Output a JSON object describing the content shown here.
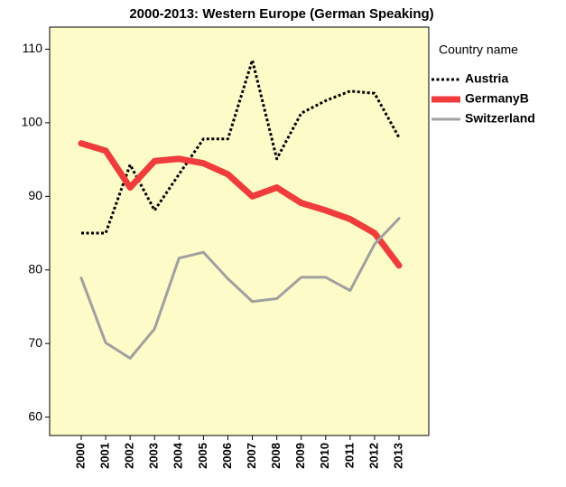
{
  "chart_data": {
    "type": "line",
    "title": "2000-2013: Western Europe (German Speaking)",
    "categories": [
      "2000",
      "2001",
      "2002",
      "2003",
      "2004",
      "2005",
      "2006",
      "2007",
      "2008",
      "2009",
      "2010",
      "2011",
      "2012",
      "2013"
    ],
    "series": [
      {
        "name": "Austria",
        "color": "#000000",
        "linestyle": "dotted",
        "linewidth": 3,
        "values": [
          85,
          85,
          94.3,
          88.1,
          93,
          97.8,
          97.8,
          108.5,
          95.1,
          101.3,
          103,
          104.3,
          104,
          98
        ]
      },
      {
        "name": "GermanyB",
        "color": "#f03c3c",
        "linestyle": "solid",
        "linewidth": 7,
        "values": [
          97.2,
          96.2,
          91.2,
          94.8,
          95.1,
          94.5,
          93,
          90,
          91.2,
          89.1,
          88.1,
          86.9,
          85,
          80.6
        ]
      },
      {
        "name": "Switzerland",
        "color": "#a0a0a0",
        "linestyle": "solid",
        "linewidth": 3,
        "values": [
          78.9,
          70.1,
          68,
          72,
          81.6,
          82.4,
          78.8,
          75.7,
          76.1,
          79,
          79,
          77.2,
          83.5,
          87
        ]
      }
    ],
    "legend_title": "Country name",
    "ylim": [
      57.5,
      113
    ],
    "yticks": [
      60,
      70,
      80,
      90,
      100,
      110
    ],
    "background": "#fdfbc8"
  }
}
